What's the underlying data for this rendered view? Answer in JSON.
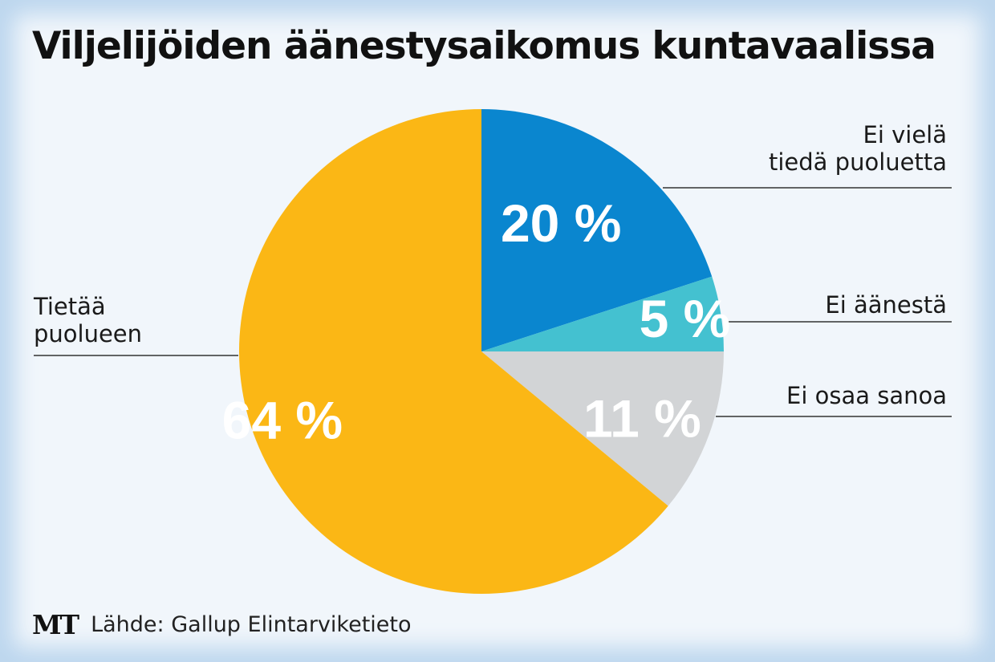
{
  "title": "Viljelijöiden äänestysaikomus kuntavaalissa",
  "footer": {
    "logo": "MT",
    "source": "Lähde: Gallup Elintarviketieto"
  },
  "chart_data": {
    "type": "pie",
    "title": "Viljelijöiden äänestysaikomus kuntavaalissa",
    "slices": [
      {
        "label_lines": [
          "Ei vielä",
          "tiedä puoluetta"
        ],
        "value": 20,
        "value_label": "20 %",
        "color": "#0a86cf"
      },
      {
        "label_lines": [
          "Ei äänestä"
        ],
        "value": 5,
        "value_label": "5 %",
        "color": "#44c1d0"
      },
      {
        "label_lines": [
          "Ei osaa sanoa"
        ],
        "value": 11,
        "value_label": "11 %",
        "color": "#d2d4d6"
      },
      {
        "label_lines": [
          "Tietää",
          "puolueen"
        ],
        "value": 64,
        "value_label": "64 %",
        "color": "#fbb715"
      }
    ]
  }
}
